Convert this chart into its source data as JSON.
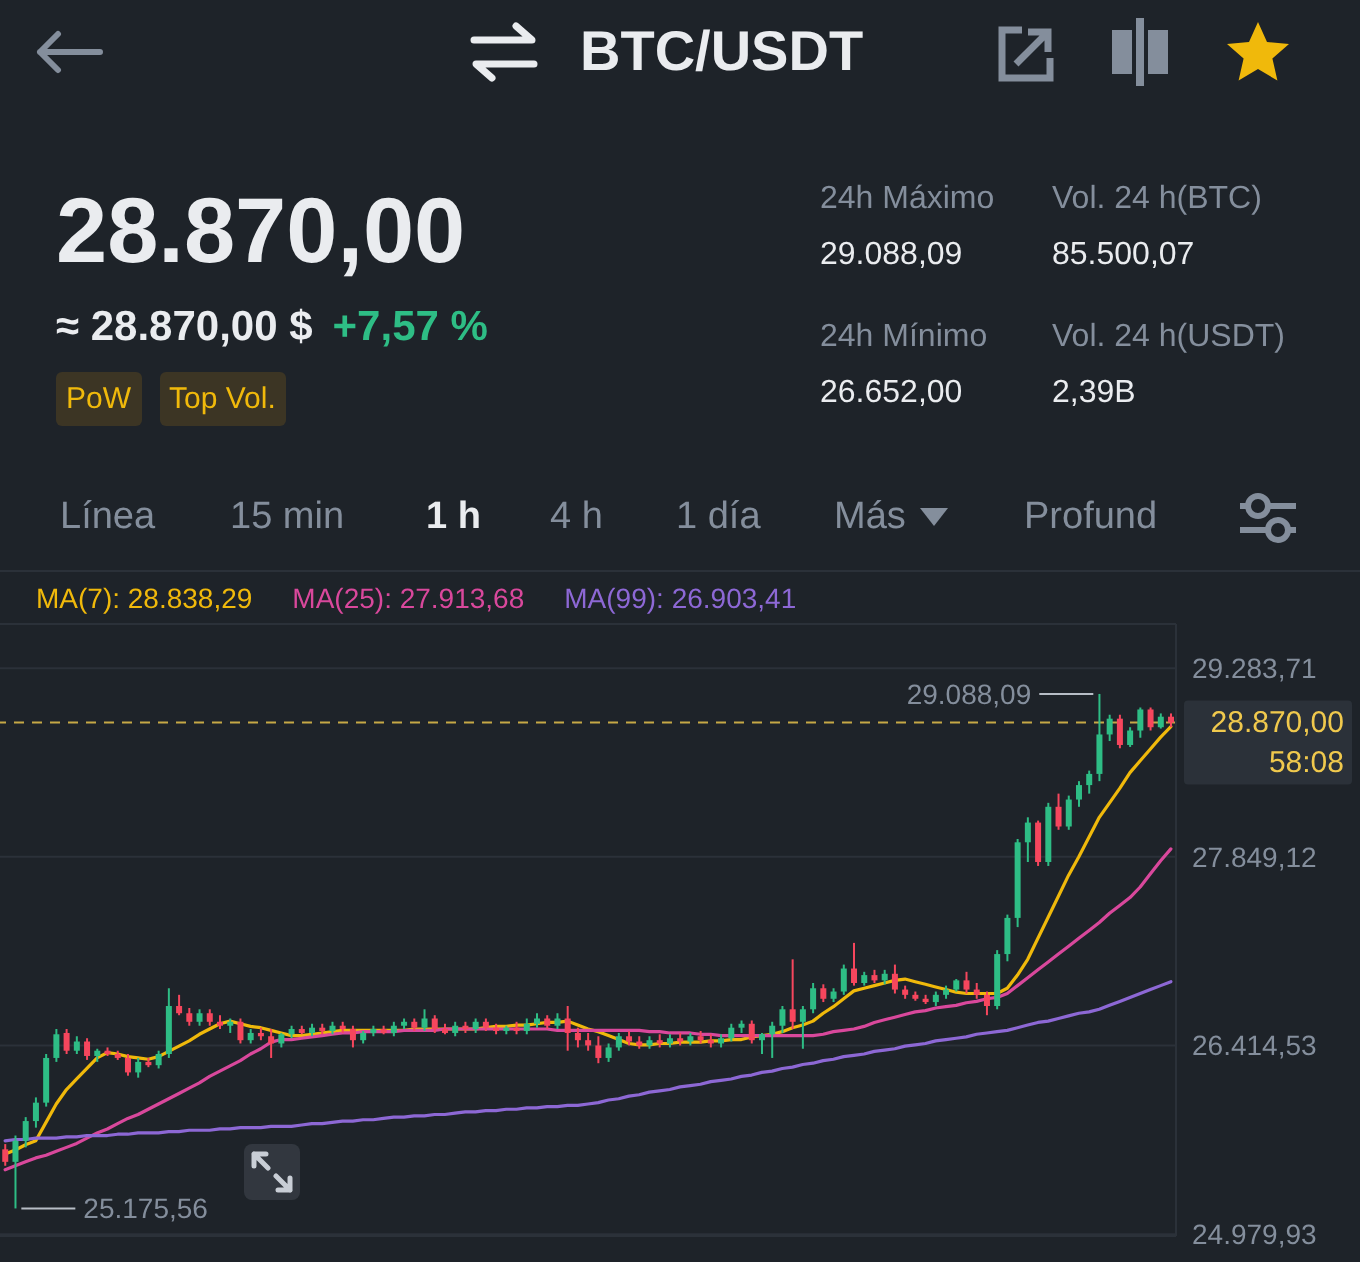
{
  "chart_data": {
    "type": "candlestick",
    "title": "BTC/USDT",
    "annotations": [
      "28.870,00",
      "≈ 28.870,00 $",
      "+7,57 %",
      "PoW",
      "Top Vol.",
      "24h Máximo",
      "29.088,09",
      "Vol. 24 h(BTC)",
      "85.500,07",
      "24h Mínimo",
      "26.652,00",
      "Vol. 24 h(USDT)",
      "2,39B",
      "Línea",
      "15 min",
      "1 h",
      "4 h",
      "1 día",
      "Más",
      "Profund",
      "29.088,09",
      "25.175,56",
      "28.870,00",
      "58:08"
    ],
    "categories": [
      null,
      null,
      null,
      null,
      null,
      null,
      null,
      null,
      null,
      null,
      null,
      null,
      null,
      null,
      null,
      null,
      null,
      null,
      null,
      null,
      null,
      null,
      null,
      null,
      null,
      null,
      null,
      null,
      null,
      null,
      null,
      null,
      null,
      null,
      null,
      null,
      null,
      null,
      null,
      null,
      null,
      null,
      null,
      null,
      null,
      null,
      null,
      null,
      null,
      null,
      null,
      null,
      null,
      null,
      null,
      null,
      null,
      null,
      null,
      null,
      null,
      null,
      null,
      null,
      null,
      null,
      null,
      null,
      null,
      null,
      null,
      null,
      null,
      null,
      null,
      null,
      null,
      null,
      null,
      null,
      null,
      null,
      null,
      null,
      null,
      null,
      null,
      null,
      null,
      null,
      null,
      null,
      null,
      null,
      null,
      null,
      null,
      null,
      null,
      null,
      null,
      null,
      null,
      null,
      null,
      null,
      null,
      null,
      null,
      null,
      null,
      null,
      null,
      null,
      null
    ],
    "ohlc": [
      [
        25625,
        25665,
        25500,
        25530
      ],
      [
        25530,
        25730,
        25175.56,
        25690
      ],
      [
        25690,
        25870,
        25640,
        25840
      ],
      [
        25840,
        26020,
        25790,
        25980
      ],
      [
        25980,
        26350,
        25950,
        26320
      ],
      [
        26320,
        26540,
        26290,
        26500
      ],
      [
        26510,
        26540,
        26350,
        26375
      ],
      [
        26375,
        26485,
        26350,
        26445
      ],
      [
        26445,
        26470,
        26305,
        26335
      ],
      [
        26335,
        26390,
        26290,
        26375
      ],
      [
        26375,
        26400,
        26335,
        26350
      ],
      [
        26350,
        26375,
        26305,
        26320
      ],
      [
        26320,
        26350,
        26185,
        26210
      ],
      [
        26210,
        26320,
        26170,
        26290
      ],
      [
        26290,
        26320,
        26250,
        26265
      ],
      [
        26265,
        26375,
        26240,
        26350
      ],
      [
        26350,
        26850,
        26320,
        26715
      ],
      [
        26715,
        26800,
        26645,
        26660
      ],
      [
        26660,
        26700,
        26565,
        26595
      ],
      [
        26595,
        26690,
        26565,
        26660
      ],
      [
        26660,
        26690,
        26565,
        26595
      ],
      [
        26595,
        26645,
        26540,
        26565
      ],
      [
        26565,
        26620,
        26510,
        26595
      ],
      [
        26595,
        26620,
        26430,
        26455
      ],
      [
        26455,
        26540,
        26430,
        26510
      ],
      [
        26510,
        26550,
        26455,
        26485
      ],
      [
        26485,
        26540,
        26320,
        26430
      ],
      [
        26430,
        26510,
        26400,
        26500
      ],
      [
        26500,
        26565,
        26470,
        26540
      ],
      [
        26540,
        26565,
        26500,
        26510
      ],
      [
        26510,
        26580,
        26485,
        26550
      ],
      [
        26550,
        26580,
        26500,
        26525
      ],
      [
        26525,
        26595,
        26500,
        26565
      ],
      [
        26565,
        26595,
        26510,
        26540
      ],
      [
        26540,
        26565,
        26400,
        26455
      ],
      [
        26455,
        26525,
        26430,
        26510
      ],
      [
        26510,
        26565,
        26485,
        26540
      ],
      [
        26540,
        26565,
        26500,
        26510
      ],
      [
        26510,
        26595,
        26485,
        26565
      ],
      [
        26565,
        26620,
        26540,
        26595
      ],
      [
        26595,
        26620,
        26525,
        26550
      ],
      [
        26550,
        26690,
        26525,
        26620
      ],
      [
        26620,
        26645,
        26510,
        26540
      ],
      [
        26540,
        26580,
        26500,
        26510
      ],
      [
        26510,
        26595,
        26485,
        26565
      ],
      [
        26565,
        26595,
        26510,
        26540
      ],
      [
        26540,
        26620,
        26510,
        26595
      ],
      [
        26595,
        26620,
        26525,
        26550
      ],
      [
        26550,
        26580,
        26500,
        26525
      ],
      [
        26525,
        26565,
        26500,
        26550
      ],
      [
        26550,
        26595,
        26500,
        26525
      ],
      [
        26525,
        26620,
        26500,
        26580
      ],
      [
        26580,
        26660,
        26550,
        26620
      ],
      [
        26620,
        26645,
        26540,
        26565
      ],
      [
        26565,
        26660,
        26540,
        26620
      ],
      [
        26620,
        26715,
        26375,
        26510
      ],
      [
        26510,
        26550,
        26400,
        26455
      ],
      [
        26455,
        26510,
        26375,
        26415
      ],
      [
        26415,
        26485,
        26280,
        26320
      ],
      [
        26320,
        26430,
        26290,
        26400
      ],
      [
        26400,
        26510,
        26375,
        26485
      ],
      [
        26485,
        26525,
        26415,
        26445
      ],
      [
        26445,
        26485,
        26390,
        26415
      ],
      [
        26415,
        26485,
        26390,
        26455
      ],
      [
        26455,
        26500,
        26400,
        26430
      ],
      [
        26430,
        26500,
        26400,
        26470
      ],
      [
        26470,
        26510,
        26415,
        26445
      ],
      [
        26445,
        26510,
        26415,
        26485
      ],
      [
        26485,
        26525,
        26430,
        26455
      ],
      [
        26455,
        26500,
        26400,
        26430
      ],
      [
        26430,
        26500,
        26400,
        26470
      ],
      [
        26470,
        26580,
        26445,
        26550
      ],
      [
        26550,
        26605,
        26510,
        26580
      ],
      [
        26580,
        26605,
        26430,
        26455
      ],
      [
        26455,
        26510,
        26350,
        26500
      ],
      [
        26500,
        26595,
        26320,
        26565
      ],
      [
        26565,
        26715,
        26510,
        26690
      ],
      [
        26690,
        27070,
        26540,
        26595
      ],
      [
        26595,
        26715,
        26390,
        26690
      ],
      [
        26690,
        26890,
        26660,
        26850
      ],
      [
        26850,
        26880,
        26745,
        26770
      ],
      [
        26770,
        26850,
        26745,
        26825
      ],
      [
        26825,
        27030,
        26800,
        27000
      ],
      [
        27000,
        27195,
        26870,
        26890
      ],
      [
        26890,
        26975,
        26870,
        26950
      ],
      [
        26950,
        26990,
        26890,
        26910
      ],
      [
        26910,
        26990,
        26880,
        26960
      ],
      [
        26960,
        27030,
        26810,
        26840
      ],
      [
        26840,
        26870,
        26770,
        26800
      ],
      [
        26800,
        26825,
        26755,
        26770
      ],
      [
        26770,
        26800,
        26730,
        26745
      ],
      [
        26745,
        26825,
        26715,
        26800
      ],
      [
        26800,
        26870,
        26770,
        26840
      ],
      [
        26840,
        26920,
        26825,
        26910
      ],
      [
        26910,
        26975,
        26810,
        26840
      ],
      [
        26840,
        26890,
        26770,
        26800
      ],
      [
        26800,
        26825,
        26645,
        26715
      ],
      [
        26715,
        27140,
        26690,
        27110
      ],
      [
        27110,
        27410,
        27055,
        27385
      ],
      [
        27385,
        27985,
        27315,
        27960
      ],
      [
        27960,
        28150,
        27810,
        28110
      ],
      [
        28110,
        28125,
        27780,
        27810
      ],
      [
        27810,
        28260,
        27780,
        28230
      ],
      [
        28230,
        28330,
        28055,
        28080
      ],
      [
        28080,
        28315,
        28055,
        28285
      ],
      [
        28285,
        28425,
        28230,
        28395
      ],
      [
        28395,
        28505,
        28330,
        28480
      ],
      [
        28480,
        29088.09,
        28425,
        28780
      ],
      [
        28780,
        28930,
        28730,
        28900
      ],
      [
        28900,
        28930,
        28675,
        28700
      ],
      [
        28700,
        28835,
        28685,
        28810
      ],
      [
        28810,
        28985,
        28755,
        28970
      ],
      [
        28970,
        28985,
        28810,
        28835
      ],
      [
        28835,
        28940,
        28825,
        28915
      ],
      [
        28915,
        28940,
        28835,
        28870
      ]
    ],
    "series": [
      {
        "name": "MA(7): 28.838,29",
        "type": "line",
        "color": "#f0b90b",
        "values": [
          25590,
          25620,
          25660,
          25690,
          25830,
          25970,
          26080,
          26160,
          26240,
          26320,
          26360,
          26350,
          26330,
          26320,
          26310,
          26330,
          26370,
          26410,
          26450,
          26500,
          26540,
          26580,
          26600,
          26580,
          26560,
          26550,
          26530,
          26510,
          26490,
          26490,
          26500,
          26510,
          26520,
          26530,
          26530,
          26530,
          26530,
          26530,
          26530,
          26530,
          26540,
          26540,
          26540,
          26540,
          26540,
          26540,
          26540,
          26550,
          26560,
          26560,
          26570,
          26570,
          26580,
          26590,
          26590,
          26600,
          26570,
          26540,
          26520,
          26490,
          26460,
          26430,
          26420,
          26420,
          26430,
          26430,
          26440,
          26440,
          26440,
          26450,
          26450,
          26460,
          26460,
          26480,
          26490,
          26500,
          26520,
          26550,
          26570,
          26600,
          26660,
          26710,
          26770,
          26830,
          26850,
          26870,
          26890,
          26910,
          26920,
          26900,
          26880,
          26860,
          26840,
          26820,
          26810,
          26810,
          26810,
          26810,
          26850,
          26950,
          27070,
          27230,
          27390,
          27550,
          27710,
          27850,
          28000,
          28150,
          28260,
          28370,
          28490,
          28580,
          28670,
          28760,
          28840
        ]
      },
      {
        "name": "MA(25): 27.913,68",
        "type": "line",
        "color": "#d9489c",
        "values": [
          25470,
          25500,
          25530,
          25560,
          25580,
          25610,
          25640,
          25670,
          25710,
          25750,
          25780,
          25820,
          25860,
          25890,
          25930,
          25970,
          26010,
          26050,
          26090,
          26130,
          26180,
          26220,
          26260,
          26300,
          26350,
          26390,
          26440,
          26460,
          26460,
          26470,
          26480,
          26490,
          26500,
          26510,
          26510,
          26520,
          26520,
          26520,
          26520,
          26530,
          26530,
          26530,
          26530,
          26540,
          26540,
          26540,
          26540,
          26540,
          26540,
          26540,
          26540,
          26540,
          26540,
          26540,
          26530,
          26530,
          26530,
          26530,
          26530,
          26530,
          26530,
          26530,
          26530,
          26520,
          26520,
          26510,
          26510,
          26510,
          26500,
          26500,
          26490,
          26490,
          26490,
          26490,
          26490,
          26490,
          26490,
          26490,
          26490,
          26490,
          26500,
          26520,
          26530,
          26540,
          26560,
          26590,
          26610,
          26630,
          26650,
          26670,
          26680,
          26700,
          26710,
          26720,
          26740,
          26750,
          26770,
          26780,
          26810,
          26870,
          26930,
          26990,
          27050,
          27110,
          27170,
          27230,
          27290,
          27350,
          27420,
          27480,
          27540,
          27620,
          27720,
          27820,
          27910
        ]
      },
      {
        "name": "MA(99): 26.903,41",
        "type": "line",
        "color": "#8d68d5",
        "values": [
          25690,
          25700,
          25700,
          25710,
          25710,
          25710,
          25720,
          25720,
          25730,
          25730,
          25730,
          25740,
          25740,
          25750,
          25750,
          25750,
          25760,
          25760,
          25770,
          25770,
          25770,
          25780,
          25780,
          25790,
          25790,
          25790,
          25800,
          25800,
          25800,
          25810,
          25820,
          25820,
          25830,
          25840,
          25840,
          25850,
          25850,
          25860,
          25870,
          25870,
          25880,
          25880,
          25890,
          25890,
          25900,
          25910,
          25910,
          25920,
          25920,
          25930,
          25930,
          25940,
          25940,
          25950,
          25950,
          25960,
          25960,
          25970,
          25980,
          26000,
          26010,
          26030,
          26040,
          26060,
          26070,
          26080,
          26100,
          26110,
          26120,
          26140,
          26150,
          26160,
          26180,
          26190,
          26210,
          26220,
          26240,
          26250,
          26270,
          26280,
          26300,
          26310,
          26330,
          26340,
          26350,
          26370,
          26380,
          26390,
          26410,
          26420,
          26430,
          26450,
          26460,
          26470,
          26480,
          26500,
          26510,
          26520,
          26530,
          26550,
          26570,
          26590,
          26600,
          26620,
          26640,
          26660,
          26670,
          26690,
          26720,
          26750,
          26780,
          26810,
          26840,
          26870,
          26900
        ]
      }
    ],
    "ylim": [
      24966,
      29620
    ],
    "yticks": [
      {
        "value": 24979.93,
        "label": "24.979,93"
      },
      {
        "value": 26414.53,
        "label": "26.414,53"
      },
      {
        "value": 27849.12,
        "label": "27.849,12"
      },
      {
        "value": 29283.71,
        "label": "29.283,71"
      }
    ],
    "ref_lines": [
      {
        "axis": "y",
        "value": 28870,
        "color": "#f0c94d",
        "line_style": "dashed"
      }
    ],
    "grid": "y",
    "legend": "top left",
    "marker": "none",
    "tick_labels": "y"
  }
}
